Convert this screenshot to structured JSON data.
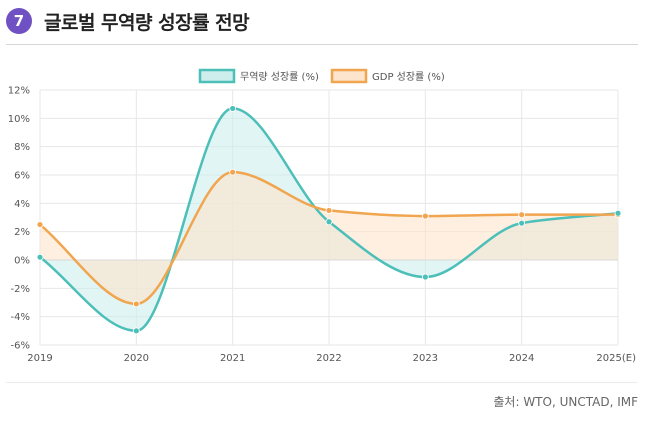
{
  "header": {
    "badge": "7",
    "title": "글로벌 무역량 성장률 전망"
  },
  "source": "출처: WTO, UNCTAD, IMF",
  "colors": {
    "trade": "#4dbfb9",
    "trade_fill": "#cdeeed",
    "gdp": "#f0a54e",
    "gdp_fill": "#fde4cc",
    "overlap": "#d5dfc9",
    "badge": "#6f51c3"
  },
  "chart_data": {
    "type": "line",
    "categories": [
      "2019",
      "2020",
      "2021",
      "2022",
      "2023",
      "2024",
      "2025(E)"
    ],
    "series": [
      {
        "name": "무역량 성장률 (%)",
        "values": [
          0.2,
          -5.0,
          10.7,
          2.7,
          -1.2,
          2.6,
          3.3
        ]
      },
      {
        "name": "GDP 성장률 (%)",
        "values": [
          2.5,
          -3.1,
          6.2,
          3.5,
          3.1,
          3.2,
          3.2
        ]
      }
    ],
    "ylim": [
      -6,
      12
    ],
    "yticks": [
      "-6%",
      "-4%",
      "-2%",
      "0%",
      "2%",
      "4%",
      "6%",
      "8%",
      "10%",
      "12%"
    ],
    "legend": "top-center",
    "grid": true,
    "fill": "to-zero"
  }
}
